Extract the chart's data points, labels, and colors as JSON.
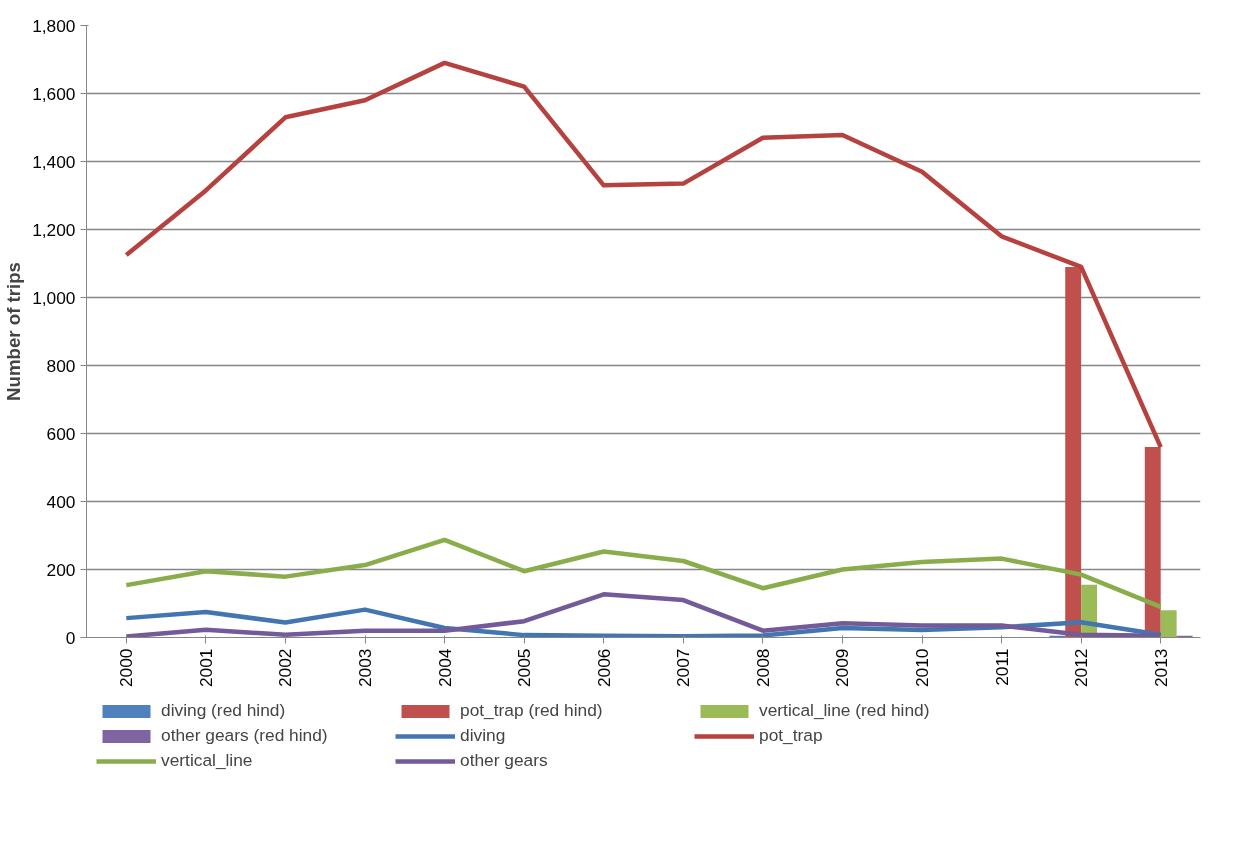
{
  "chart_data": {
    "type": "line",
    "ylabel": "Number of trips",
    "categories": [
      "2000",
      "2001",
      "2002",
      "2003",
      "2004",
      "2005",
      "2006",
      "2007",
      "2008",
      "2009",
      "2010",
      "2011",
      "2012",
      "2013"
    ],
    "series": [
      {
        "name": "diving (red hind)",
        "type": "bar",
        "color": "#4f81bd",
        "values": [
          null,
          null,
          null,
          null,
          null,
          null,
          null,
          null,
          null,
          null,
          null,
          null,
          5,
          null
        ]
      },
      {
        "name": "pot_trap (red hind)",
        "type": "bar",
        "color": "#c0504d",
        "values": [
          null,
          null,
          null,
          null,
          null,
          null,
          null,
          null,
          null,
          null,
          null,
          null,
          1090,
          560
        ]
      },
      {
        "name": "vertical_line (red hind)",
        "type": "bar",
        "color": "#9bbb59",
        "values": [
          null,
          null,
          null,
          null,
          null,
          null,
          null,
          null,
          null,
          null,
          null,
          null,
          155,
          80
        ]
      },
      {
        "name": "other gears (red hind)",
        "type": "bar",
        "color": "#8064a2",
        "values": [
          null,
          null,
          null,
          null,
          null,
          null,
          null,
          null,
          null,
          null,
          null,
          null,
          null,
          5
        ]
      },
      {
        "name": "diving",
        "color": "#4376b0",
        "values": [
          57,
          75,
          44,
          82,
          28,
          7,
          5,
          4,
          6,
          28,
          22,
          30,
          45,
          8
        ]
      },
      {
        "name": "pot_trap",
        "color": "#b5423f",
        "values": [
          1125,
          1315,
          1530,
          1580,
          1690,
          1620,
          1330,
          1335,
          1470,
          1478,
          1370,
          1180,
          1090,
          560
        ]
      },
      {
        "name": "vertical_line",
        "color": "#8aad4c",
        "values": [
          154,
          195,
          179,
          213,
          287,
          195,
          253,
          225,
          145,
          200,
          222,
          232,
          185,
          90
        ]
      },
      {
        "name": "other gears",
        "color": "#735a98",
        "values": [
          3,
          23,
          8,
          20,
          20,
          48,
          127,
          110,
          20,
          42,
          35,
          35,
          8,
          5
        ]
      }
    ],
    "ylim": [
      0,
      1800
    ],
    "yticks": [
      0,
      {
        "value": 200,
        "label": "200"
      },
      {
        "value": 400,
        "label": "400"
      },
      {
        "value": 600,
        "label": "600"
      },
      {
        "value": 800,
        "label": "800"
      },
      {
        "value": 1000,
        "label": "1,000"
      },
      {
        "value": 1200,
        "label": "1,200"
      },
      {
        "value": 1400,
        "label": "1,400"
      },
      {
        "value": 1600,
        "label": "1,600"
      },
      {
        "value": 1800,
        "label": "1,800"
      }
    ],
    "grid": "y",
    "legend": "bottom",
    "line_style": "solid",
    "marker": "none"
  }
}
